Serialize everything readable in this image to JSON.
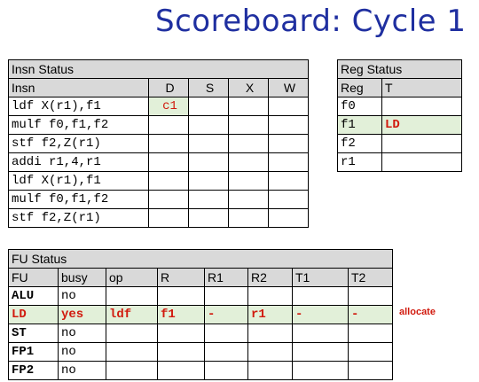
{
  "title": "Scoreboard: Cycle 1",
  "insn_status": {
    "caption": "Insn Status",
    "headers": [
      "Insn",
      "D",
      "S",
      "X",
      "W"
    ],
    "rows": [
      {
        "insn": "ldf X(r1),f1",
        "d": "c1",
        "s": "",
        "x": "",
        "w": ""
      },
      {
        "insn": "mulf f0,f1,f2",
        "d": "",
        "s": "",
        "x": "",
        "w": ""
      },
      {
        "insn": "stf f2,Z(r1)",
        "d": "",
        "s": "",
        "x": "",
        "w": ""
      },
      {
        "insn": "addi r1,4,r1",
        "d": "",
        "s": "",
        "x": "",
        "w": ""
      },
      {
        "insn": "ldf X(r1),f1",
        "d": "",
        "s": "",
        "x": "",
        "w": ""
      },
      {
        "insn": "mulf f0,f1,f2",
        "d": "",
        "s": "",
        "x": "",
        "w": ""
      },
      {
        "insn": "stf f2,Z(r1)",
        "d": "",
        "s": "",
        "x": "",
        "w": ""
      }
    ]
  },
  "reg_status": {
    "caption": "Reg Status",
    "headers": [
      "Reg",
      "T"
    ],
    "rows": [
      {
        "reg": "f0",
        "t": ""
      },
      {
        "reg": "f1",
        "t": "LD"
      },
      {
        "reg": "f2",
        "t": ""
      },
      {
        "reg": "r1",
        "t": ""
      }
    ]
  },
  "fu_status": {
    "caption": "FU Status",
    "headers": [
      "FU",
      "busy",
      "op",
      "R",
      "R1",
      "R2",
      "T1",
      "T2"
    ],
    "rows": [
      {
        "fu": "ALU",
        "busy": "no",
        "op": "",
        "r": "",
        "r1": "",
        "r2": "",
        "t1": "",
        "t2": ""
      },
      {
        "fu": "LD",
        "busy": "yes",
        "op": "ldf",
        "r": "f1",
        "r1": "-",
        "r2": "r1",
        "t1": "-",
        "t2": "-"
      },
      {
        "fu": "ST",
        "busy": "no",
        "op": "",
        "r": "",
        "r1": "",
        "r2": "",
        "t1": "",
        "t2": ""
      },
      {
        "fu": "FP1",
        "busy": "no",
        "op": "",
        "r": "",
        "r1": "",
        "r2": "",
        "t1": "",
        "t2": ""
      },
      {
        "fu": "FP2",
        "busy": "no",
        "op": "",
        "r": "",
        "r1": "",
        "r2": "",
        "t1": "",
        "t2": ""
      }
    ]
  },
  "annotation": "allocate",
  "colors": {
    "title": "#1f2fa0",
    "highlight_text": "#d11a0e",
    "highlight_bg": "#e2f0d9",
    "header_bg": "#d9d9d9"
  }
}
